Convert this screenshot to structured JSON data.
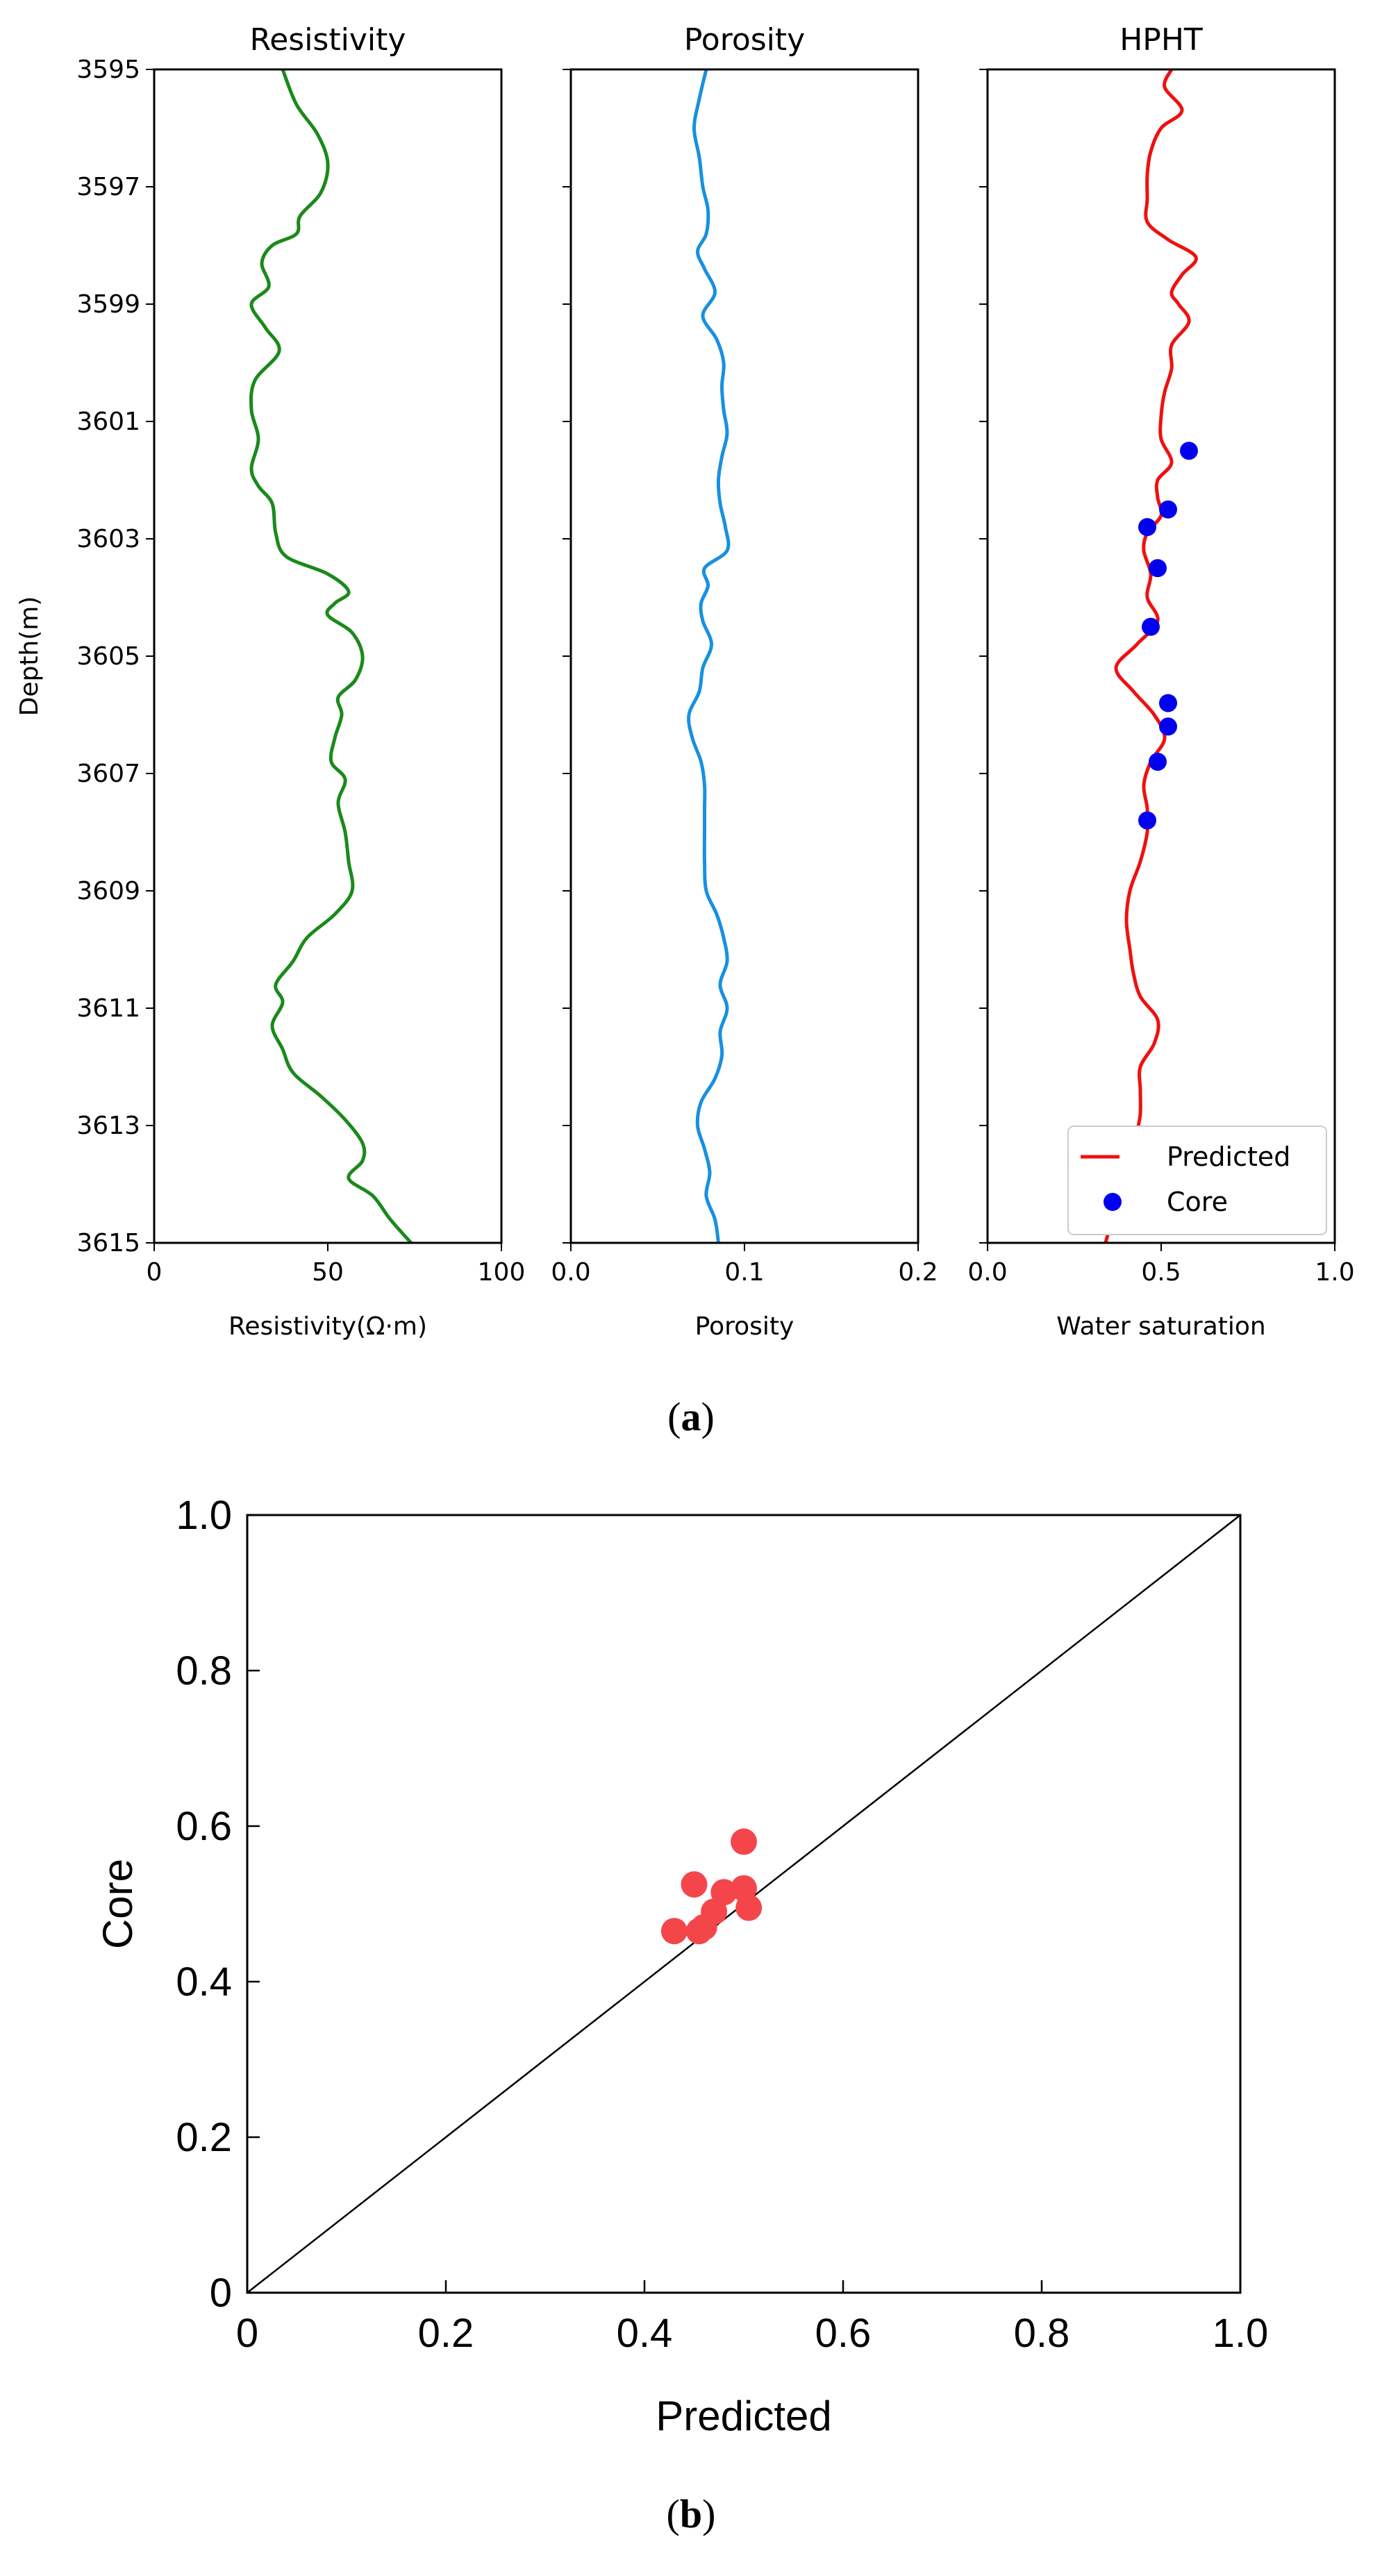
{
  "chart_data": [
    {
      "type": "line",
      "title": "Resistivity",
      "xlabel": "Resistivity(Ω·m)",
      "ylabel": "Depth(m)",
      "xlim": [
        0,
        100
      ],
      "ylim": [
        3615,
        3595
      ],
      "x_ticks": [
        "0",
        "50",
        "100"
      ],
      "y_ticks": [
        "3595",
        "3597",
        "3599",
        "3601",
        "3603",
        "3605",
        "3607",
        "3609",
        "3611",
        "3613",
        "3615"
      ],
      "color": "#1a8a1a",
      "series": [
        {
          "name": "Resistivity",
          "depth": [
            3595,
            3595.6,
            3596.1,
            3596.6,
            3597.1,
            3597.5,
            3597.8,
            3598.0,
            3598.3,
            3598.7,
            3599.0,
            3599.4,
            3599.8,
            3600.3,
            3600.8,
            3601.3,
            3601.8,
            3602.1,
            3602.4,
            3602.9,
            3603.3,
            3603.6,
            3603.9,
            3604.1,
            3604.3,
            3604.6,
            3605.0,
            3605.4,
            3605.7,
            3606.0,
            3606.4,
            3606.8,
            3607.1,
            3607.5,
            3608.0,
            3608.5,
            3609.0,
            3609.4,
            3609.8,
            3610.2,
            3610.6,
            3610.9,
            3611.3,
            3611.7,
            3612.1,
            3612.5,
            3612.9,
            3613.3,
            3613.6,
            3613.9,
            3614.2,
            3614.6,
            3615.0
          ],
          "values": [
            37,
            41,
            47,
            50,
            48,
            42,
            41,
            34,
            31,
            33,
            28,
            32,
            36,
            29,
            28,
            30,
            28,
            30,
            34,
            35,
            38,
            50,
            56,
            52,
            50,
            57,
            60,
            58,
            53,
            54,
            52,
            51,
            55,
            53,
            55,
            56,
            57,
            52,
            44,
            40,
            35,
            37,
            34,
            37,
            40,
            48,
            55,
            60,
            60,
            56,
            63,
            68,
            74
          ]
        }
      ]
    },
    {
      "type": "line",
      "title": "Porosity",
      "xlabel": "Porosity",
      "xlim": [
        0.0,
        0.2
      ],
      "ylim": [
        3615,
        3595
      ],
      "x_ticks": [
        "0.0",
        "0.1",
        "0.2"
      ],
      "color": "#1890e0",
      "series": [
        {
          "name": "Porosity",
          "depth": [
            3595,
            3595.5,
            3596.0,
            3596.5,
            3597.0,
            3597.4,
            3597.8,
            3598.1,
            3598.4,
            3598.8,
            3599.2,
            3599.6,
            3600.0,
            3600.4,
            3600.8,
            3601.2,
            3601.6,
            3602.0,
            3602.4,
            3602.8,
            3603.2,
            3603.5,
            3603.8,
            3604.1,
            3604.4,
            3604.8,
            3605.2,
            3605.6,
            3606.0,
            3606.4,
            3606.8,
            3607.2,
            3607.6,
            3608.0,
            3608.5,
            3609.0,
            3609.4,
            3609.8,
            3610.2,
            3610.6,
            3611.0,
            3611.4,
            3611.8,
            3612.2,
            3612.6,
            3613.0,
            3613.4,
            3613.8,
            3614.2,
            3614.6,
            3615.0
          ],
          "values": [
            0.078,
            0.074,
            0.071,
            0.074,
            0.076,
            0.079,
            0.078,
            0.073,
            0.077,
            0.083,
            0.076,
            0.084,
            0.088,
            0.087,
            0.088,
            0.09,
            0.087,
            0.085,
            0.086,
            0.089,
            0.09,
            0.077,
            0.079,
            0.075,
            0.076,
            0.081,
            0.076,
            0.074,
            0.068,
            0.07,
            0.075,
            0.077,
            0.077,
            0.077,
            0.077,
            0.078,
            0.084,
            0.088,
            0.09,
            0.086,
            0.09,
            0.086,
            0.087,
            0.083,
            0.075,
            0.073,
            0.077,
            0.08,
            0.078,
            0.083,
            0.085
          ]
        }
      ]
    },
    {
      "type": "line",
      "title": "HPHT",
      "xlabel": "Water saturation",
      "xlim": [
        0.0,
        1.0
      ],
      "ylim": [
        3615,
        3595
      ],
      "x_ticks": [
        "0.0",
        "0.5",
        "1.0"
      ],
      "legend": [
        {
          "label": "Predicted"
        },
        {
          "label": "Core"
        }
      ],
      "legend_position": "lower-right",
      "series": [
        {
          "name": "Predicted",
          "color": "#ee1111",
          "depth": [
            3595,
            3595.3,
            3595.7,
            3596.0,
            3596.4,
            3596.8,
            3597.2,
            3597.6,
            3597.9,
            3598.2,
            3598.5,
            3598.8,
            3599.0,
            3599.3,
            3599.7,
            3600.1,
            3600.5,
            3600.9,
            3601.3,
            3601.7,
            3602.0,
            3602.3,
            3602.6,
            3602.9,
            3603.2,
            3603.6,
            3604.0,
            3604.4,
            3604.8,
            3605.2,
            3605.6,
            3606.0,
            3606.4,
            3606.8,
            3607.2,
            3607.6,
            3608.0,
            3608.5,
            3609.0,
            3609.5,
            3610.0,
            3610.4,
            3610.8,
            3611.2,
            3611.6,
            3612.0,
            3612.4,
            3612.8,
            3613.2,
            3613.6,
            3614.0,
            3614.4,
            3614.8,
            3615.0
          ],
          "values": [
            0.53,
            0.51,
            0.56,
            0.5,
            0.47,
            0.46,
            0.46,
            0.46,
            0.52,
            0.6,
            0.56,
            0.53,
            0.55,
            0.58,
            0.53,
            0.53,
            0.51,
            0.5,
            0.5,
            0.53,
            0.49,
            0.49,
            0.5,
            0.46,
            0.45,
            0.47,
            0.46,
            0.49,
            0.43,
            0.37,
            0.42,
            0.48,
            0.51,
            0.47,
            0.45,
            0.46,
            0.46,
            0.44,
            0.41,
            0.4,
            0.41,
            0.42,
            0.44,
            0.49,
            0.48,
            0.44,
            0.44,
            0.44,
            0.43,
            0.44,
            0.41,
            0.38,
            0.35,
            0.34
          ]
        },
        {
          "name": "Core",
          "type": "scatter",
          "color": "#0000ee",
          "depth": [
            3601.5,
            3602.5,
            3602.8,
            3603.5,
            3604.5,
            3605.8,
            3606.2,
            3606.8,
            3607.8
          ],
          "values": [
            0.58,
            0.52,
            0.46,
            0.49,
            0.47,
            0.52,
            0.52,
            0.49,
            0.46
          ]
        }
      ]
    },
    {
      "type": "scatter",
      "title": "",
      "xlabel": "Predicted",
      "ylabel": "Core",
      "xlim": [
        0,
        1.0
      ],
      "ylim": [
        0,
        1.0
      ],
      "x_ticks": [
        "0",
        "0.2",
        "0.4",
        "0.6",
        "0.8",
        "1.0"
      ],
      "y_ticks": [
        "0",
        "0.2",
        "0.4",
        "0.6",
        "0.8",
        "1.0"
      ],
      "reference_line": "y = x",
      "color": "#f4454b",
      "x": [
        0.43,
        0.45,
        0.455,
        0.46,
        0.47,
        0.48,
        0.5,
        0.5,
        0.505
      ],
      "y": [
        0.465,
        0.525,
        0.465,
        0.47,
        0.49,
        0.515,
        0.58,
        0.52,
        0.495
      ]
    }
  ],
  "captions": {
    "a_open": "(",
    "a_letter": "a",
    "a_close": ")",
    "b_open": "(",
    "b_letter": "b",
    "b_close": ")"
  }
}
